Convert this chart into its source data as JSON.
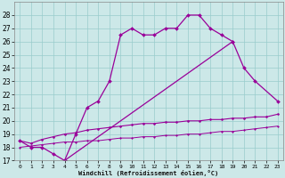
{
  "bg_color": "#cce8e8",
  "grid_color": "#99cccc",
  "line_color": "#990099",
  "xlabel": "Windchill (Refroidissement éolien,°C)",
  "line1_x": [
    0,
    1,
    2,
    3,
    4,
    5,
    6,
    7,
    8,
    9,
    10,
    11,
    12,
    13,
    14,
    15,
    16,
    17,
    18,
    19
  ],
  "line1_y": [
    18.5,
    18.0,
    18.0,
    17.5,
    17.0,
    19.0,
    21.0,
    21.5,
    23.0,
    26.5,
    27.0,
    26.5,
    26.5,
    27.0,
    27.0,
    28.0,
    28.0,
    27.0,
    26.5,
    26.0
  ],
  "line2_x": [
    4,
    19,
    20,
    21,
    23
  ],
  "line2_y": [
    17.0,
    26.0,
    24.0,
    23.0,
    21.5
  ],
  "line3_x": [
    0,
    1,
    2,
    3,
    4,
    5,
    6,
    7,
    8,
    9,
    10,
    11,
    12,
    13,
    14,
    15,
    16,
    17,
    18,
    19,
    20,
    21,
    22,
    23
  ],
  "line3_y": [
    18.5,
    18.3,
    18.6,
    18.8,
    19.0,
    19.1,
    19.3,
    19.4,
    19.5,
    19.6,
    19.7,
    19.8,
    19.8,
    19.9,
    19.9,
    20.0,
    20.0,
    20.1,
    20.1,
    20.2,
    20.2,
    20.3,
    20.3,
    20.5
  ],
  "line4_x": [
    0,
    1,
    2,
    3,
    4,
    5,
    6,
    7,
    8,
    9,
    10,
    11,
    12,
    13,
    14,
    15,
    16,
    17,
    18,
    19,
    20,
    21,
    22,
    23
  ],
  "line4_y": [
    18.0,
    18.1,
    18.2,
    18.3,
    18.4,
    18.4,
    18.5,
    18.5,
    18.6,
    18.7,
    18.7,
    18.8,
    18.8,
    18.9,
    18.9,
    19.0,
    19.0,
    19.1,
    19.2,
    19.2,
    19.3,
    19.4,
    19.5,
    19.6
  ],
  "xlim": [
    -0.5,
    23.5
  ],
  "ylim": [
    17,
    29
  ],
  "yticks": [
    17,
    18,
    19,
    20,
    21,
    22,
    23,
    24,
    25,
    26,
    27,
    28
  ],
  "xticks": [
    0,
    1,
    2,
    3,
    4,
    5,
    6,
    7,
    8,
    9,
    10,
    11,
    12,
    13,
    14,
    15,
    16,
    17,
    18,
    19,
    20,
    21,
    22,
    23
  ]
}
